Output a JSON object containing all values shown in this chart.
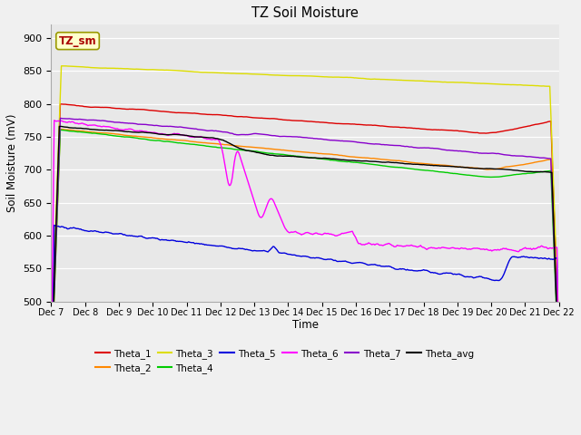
{
  "title": "TZ Soil Moisture",
  "xlabel": "Time",
  "ylabel": "Soil Moisture (mV)",
  "ylim": [
    500,
    920
  ],
  "yticks": [
    500,
    550,
    600,
    650,
    700,
    750,
    800,
    850,
    900
  ],
  "xlim": [
    0,
    15
  ],
  "bg_color": "#e8e8e8",
  "fig_bg_color": "#f0f0f0",
  "legend_label": "TZ_sm",
  "legend_label_color": "#aa0000",
  "legend_box_facecolor": "#ffffcc",
  "legend_box_edgecolor": "#999900",
  "colors": {
    "Theta_1": "#dd0000",
    "Theta_2": "#ff8800",
    "Theta_3": "#dddd00",
    "Theta_4": "#00cc00",
    "Theta_5": "#0000dd",
    "Theta_6": "#ff00ff",
    "Theta_7": "#8800cc",
    "Theta_avg": "#000000"
  },
  "date_labels": [
    "Dec 7",
    "Dec 8",
    "Dec 9",
    "Dec 10",
    "Dec 11",
    "Dec 12",
    "Dec 13",
    "Dec 14",
    "Dec 15",
    "Dec 16",
    "Dec 17",
    "Dec 18",
    "Dec 19",
    "Dec 20",
    "Dec 21",
    "Dec 22"
  ]
}
